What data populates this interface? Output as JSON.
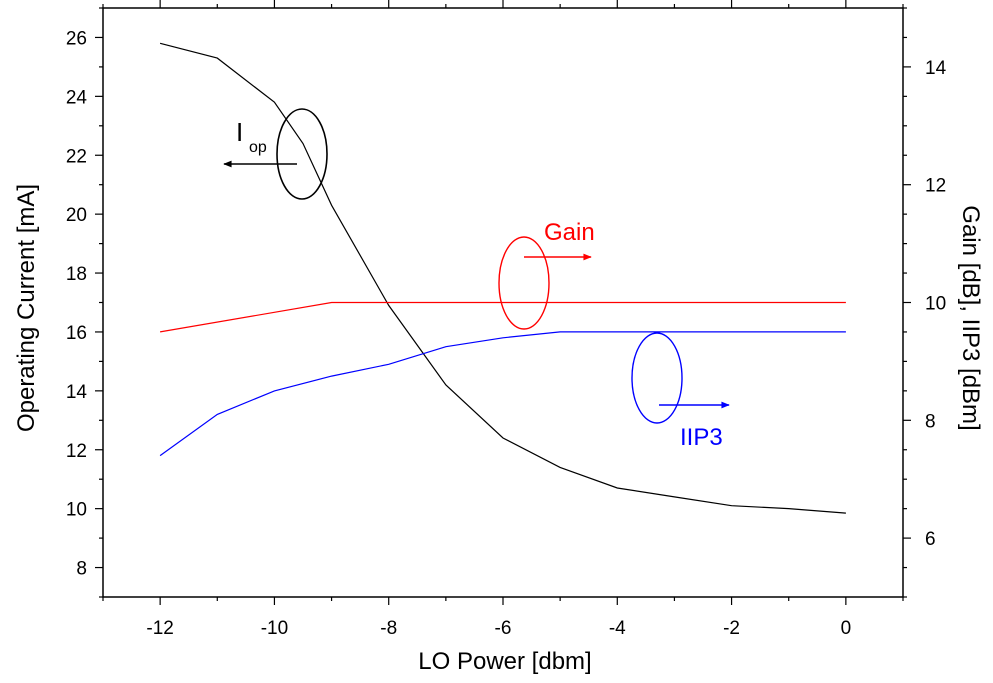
{
  "chart_data": {
    "type": "line",
    "xlabel": "LO Power [dbm]",
    "ylabel_left": "Operating Current [mA]",
    "ylabel_right": "Gain [dB], IIP3 [dBm]",
    "xlim": [
      -13,
      1
    ],
    "ylim_left": [
      7,
      27
    ],
    "ylim_right": [
      5,
      15
    ],
    "x_ticks": [
      -12,
      -10,
      -8,
      -6,
      -4,
      -2,
      0
    ],
    "y_ticks_left": [
      8,
      10,
      12,
      14,
      16,
      18,
      20,
      22,
      24,
      26
    ],
    "y_ticks_right": [
      6,
      8,
      10,
      12,
      14
    ],
    "grid": false,
    "series": [
      {
        "name": "Iop",
        "axis": "left",
        "color": "#000000",
        "x": [
          -12,
          -11,
          -10,
          -9.5,
          -9,
          -8,
          -7,
          -6,
          -5,
          -4,
          -3,
          -2,
          -1,
          0
        ],
        "values": [
          25.8,
          25.3,
          23.8,
          22.4,
          20.3,
          16.9,
          14.2,
          12.4,
          11.4,
          10.7,
          10.4,
          10.1,
          10.0,
          9.85
        ]
      },
      {
        "name": "Gain",
        "axis": "right",
        "color": "#ff0000",
        "x": [
          -12,
          -9,
          -8,
          -6,
          -4,
          -2,
          0
        ],
        "values": [
          9.5,
          10.0,
          10.0,
          10.0,
          10.0,
          10.0,
          10.0
        ]
      },
      {
        "name": "IIP3",
        "axis": "right",
        "color": "#0000ff",
        "x": [
          -12,
          -11,
          -10,
          -9,
          -8,
          -7,
          -6,
          -5,
          -4,
          -2,
          0
        ],
        "values": [
          7.4,
          8.1,
          8.5,
          8.75,
          8.95,
          9.25,
          9.4,
          9.5,
          9.5,
          9.5,
          9.5
        ]
      }
    ],
    "annotations": [
      {
        "name": "iop",
        "text": "I",
        "sub": "op",
        "color": "#000000"
      },
      {
        "name": "gain",
        "text": "Gain",
        "color": "#ff0000"
      },
      {
        "name": "iip3",
        "text": "IIP3",
        "color": "#0000ff"
      }
    ]
  }
}
